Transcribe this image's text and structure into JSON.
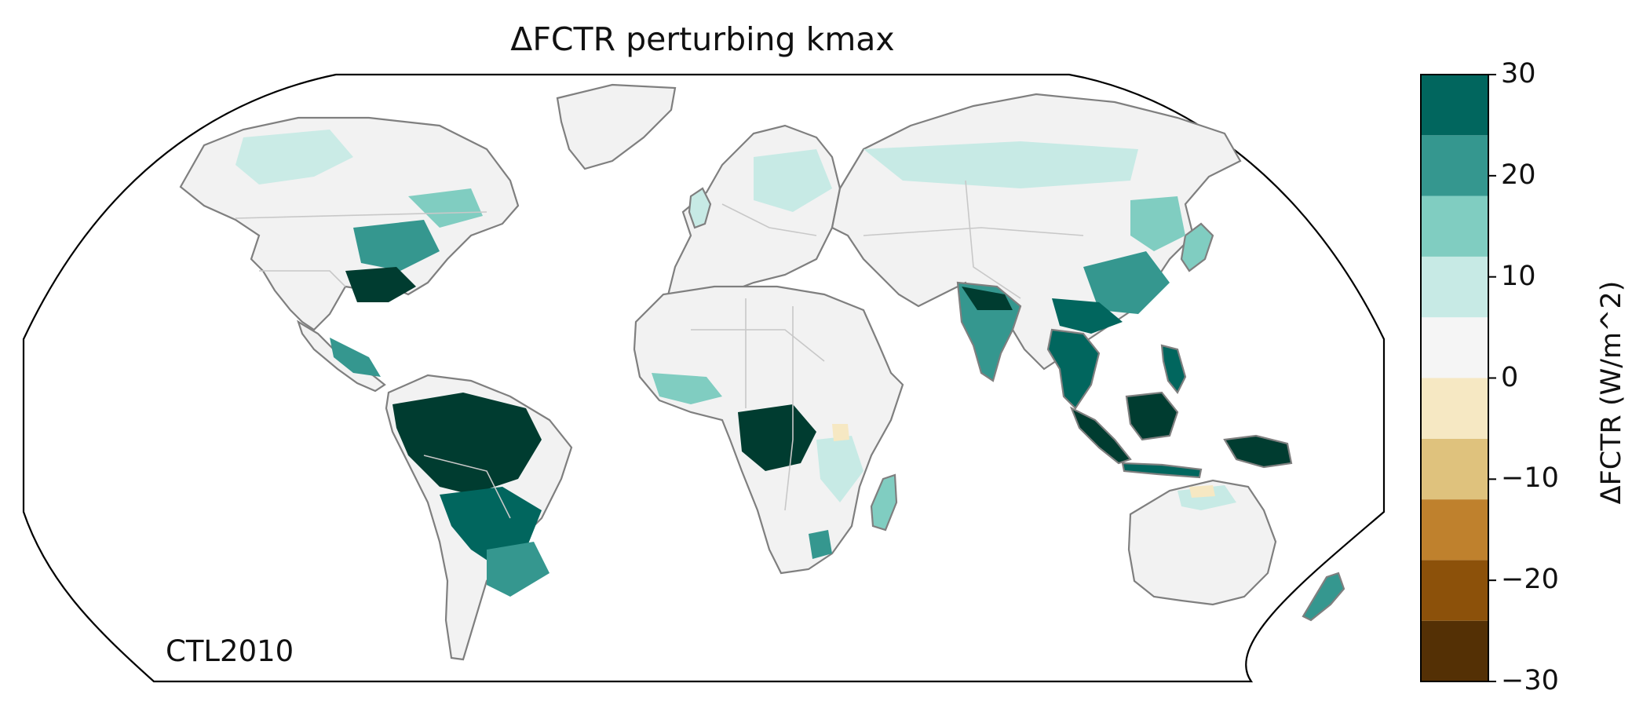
{
  "title": "ΔFCTR perturbing kmax",
  "stamp": "CTL2010",
  "colorbar": {
    "label": "ΔFCTR (W/m^2)",
    "range": [
      -30,
      30
    ],
    "bins": [
      -30,
      -24,
      -18,
      -12,
      -6,
      0,
      6,
      12,
      18,
      24,
      30
    ],
    "colors": [
      "#543005",
      "#8c510a",
      "#bf812d",
      "#dfc27d",
      "#f6e8c3",
      "#f5f5f5",
      "#c7eae5",
      "#80cdc1",
      "#35978f",
      "#01665e",
      "#003c30"
    ],
    "ticks": [
      {
        "value": 30,
        "label": "30"
      },
      {
        "value": 20,
        "label": "20"
      },
      {
        "value": 10,
        "label": "10"
      },
      {
        "value": 0,
        "label": "0"
      },
      {
        "value": -10,
        "label": "−10"
      },
      {
        "value": -20,
        "label": "−20"
      },
      {
        "value": -30,
        "label": "−30"
      }
    ]
  },
  "colors": {
    "land_neutral": "#f2f2f2",
    "coastline": "#7f7f7f",
    "borders": "#c8c8c8",
    "frame": "#000000"
  }
}
